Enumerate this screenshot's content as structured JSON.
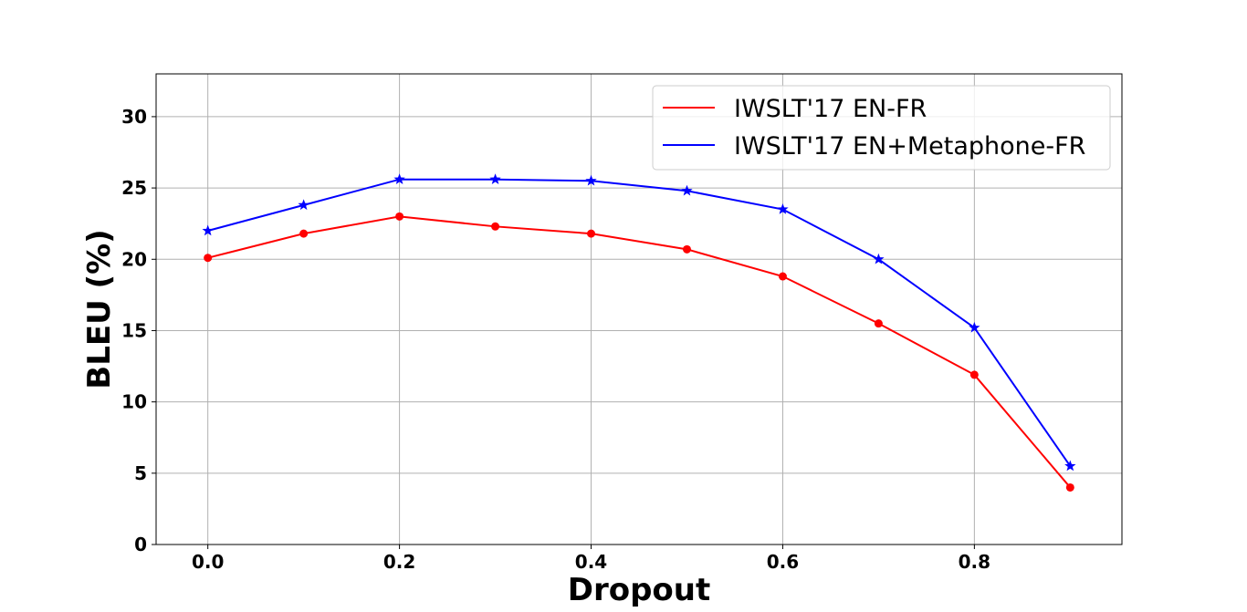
{
  "chart_data": {
    "type": "line",
    "xlabel": "Dropout",
    "ylabel": "BLEU (%)",
    "xlim": [
      -0.054,
      0.954
    ],
    "ylim": [
      0,
      33
    ],
    "x_ticks": [
      "0.0",
      "0.2",
      "0.4",
      "0.6",
      "0.8"
    ],
    "x_tick_values": [
      0.0,
      0.2,
      0.4,
      0.6,
      0.8
    ],
    "y_ticks": [
      "0",
      "5",
      "10",
      "15",
      "20",
      "25",
      "30"
    ],
    "y_tick_values": [
      0,
      5,
      10,
      15,
      20,
      25,
      30
    ],
    "grid": true,
    "legend_position": "top-right",
    "x": [
      0.0,
      0.1,
      0.2,
      0.3,
      0.4,
      0.5,
      0.6,
      0.7,
      0.8,
      0.9
    ],
    "series": [
      {
        "name": "IWSLT'17 EN-FR",
        "color": "#ff0000",
        "marker": "circle",
        "values": [
          20.1,
          21.8,
          23.0,
          22.3,
          21.8,
          20.7,
          18.8,
          15.5,
          11.9,
          4.0
        ]
      },
      {
        "name": "IWSLT'17 EN+Metaphone-FR",
        "color": "#0000ff",
        "marker": "star",
        "values": [
          22.0,
          23.8,
          25.6,
          25.6,
          25.5,
          24.8,
          23.5,
          20.0,
          15.2,
          5.5
        ]
      }
    ]
  }
}
